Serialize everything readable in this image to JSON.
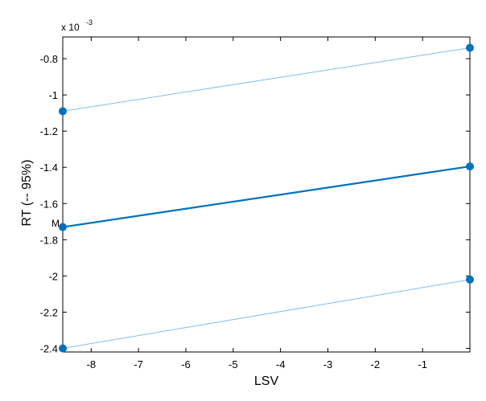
{
  "chart_data": {
    "type": "line",
    "xlabel": "LSV",
    "ylabel": "RT (-- 95%)",
    "exponent_base": "x 10",
    "exponent_power": "-3",
    "stray_label": "M",
    "xlim": [
      -8.6,
      0.0
    ],
    "ylim": [
      -2.42,
      -0.68
    ],
    "xticks": [
      -8,
      -7,
      -6,
      -5,
      -4,
      -3,
      -2,
      -1
    ],
    "yticks": [
      -0.8,
      -1,
      -1.2,
      -1.4,
      -1.6,
      -1.8,
      -2,
      -2.2,
      -2.4
    ],
    "ytick_labels": [
      "-0.8",
      "-1",
      "-1.2",
      "-1.4",
      "-1.6",
      "-1.8",
      "-2",
      "-2.2",
      "-2.4"
    ],
    "grid": false,
    "colors": {
      "upper": "#7fbfe9",
      "mean": "#0072bd",
      "lower": "#7fbfe9",
      "marker": "#0072bd"
    },
    "series": [
      {
        "role": "upper",
        "x": [
          -8.6,
          0.0
        ],
        "y": [
          -1.09,
          -0.74
        ]
      },
      {
        "role": "mean",
        "x": [
          -8.6,
          0.0
        ],
        "y": [
          -1.73,
          -1.395
        ]
      },
      {
        "role": "lower",
        "x": [
          -8.6,
          0.0
        ],
        "y": [
          -2.4,
          -2.02
        ]
      }
    ]
  }
}
